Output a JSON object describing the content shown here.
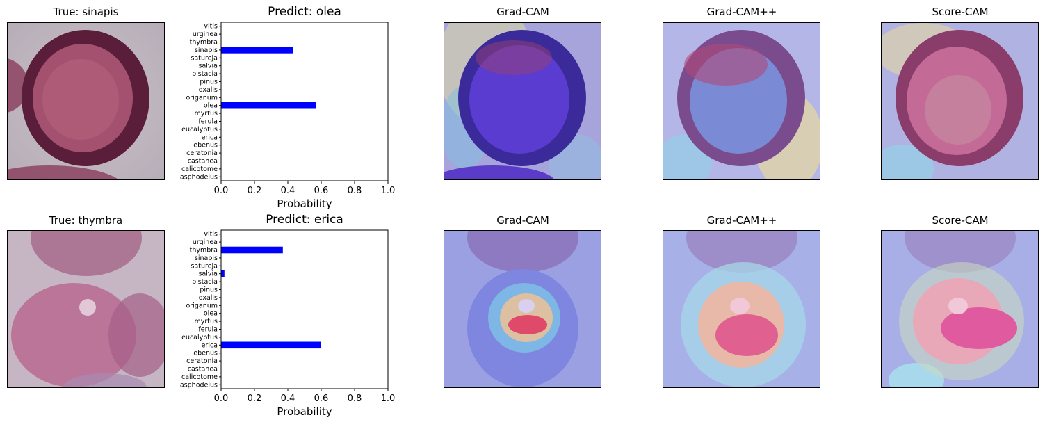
{
  "rows": [
    {
      "true_title": "True: sinapis",
      "predict_title": "Predict: olea",
      "cam_titles": [
        "Grad-CAM",
        "Grad-CAM++",
        "Score-CAM"
      ]
    },
    {
      "true_title": "True: thymbra",
      "predict_title": "Predict: erica",
      "cam_titles": [
        "Grad-CAM",
        "Grad-CAM++",
        "Score-CAM"
      ]
    }
  ],
  "colors": {
    "bar": "#0000ff"
  },
  "chart_data": [
    {
      "type": "bar",
      "orientation": "horizontal",
      "title": "Predict: olea",
      "xlabel": "Probability",
      "ylabel": "",
      "xlim": [
        0,
        1.0
      ],
      "xticks": [
        "0.0",
        "0.2",
        "0.4",
        "0.6",
        "0.8",
        "1.0"
      ],
      "categories": [
        "vitis",
        "urginea",
        "thymbra",
        "sinapis",
        "satureja",
        "salvia",
        "pistacia",
        "pinus",
        "oxalis",
        "origanum",
        "olea",
        "myrtus",
        "ferula",
        "eucalyptus",
        "erica",
        "ebenus",
        "ceratonia",
        "castanea",
        "calicotome",
        "asphodelus"
      ],
      "values": [
        0,
        0,
        0,
        0.43,
        0,
        0,
        0,
        0,
        0,
        0,
        0.57,
        0,
        0,
        0,
        0,
        0,
        0,
        0,
        0,
        0
      ]
    },
    {
      "type": "bar",
      "orientation": "horizontal",
      "title": "Predict: erica",
      "xlabel": "Probability",
      "ylabel": "",
      "xlim": [
        0,
        1.0
      ],
      "xticks": [
        "0.0",
        "0.2",
        "0.4",
        "0.6",
        "0.8",
        "1.0"
      ],
      "categories": [
        "vitis",
        "urginea",
        "thymbra",
        "sinapis",
        "satureja",
        "salvia",
        "pistacia",
        "pinus",
        "oxalis",
        "origanum",
        "olea",
        "myrtus",
        "ferula",
        "eucalyptus",
        "erica",
        "ebenus",
        "ceratonia",
        "castanea",
        "calicotome",
        "asphodelus"
      ],
      "values": [
        0,
        0,
        0.37,
        0,
        0,
        0.02,
        0,
        0,
        0,
        0,
        0,
        0,
        0,
        0,
        0.6,
        0,
        0,
        0,
        0,
        0
      ]
    }
  ]
}
